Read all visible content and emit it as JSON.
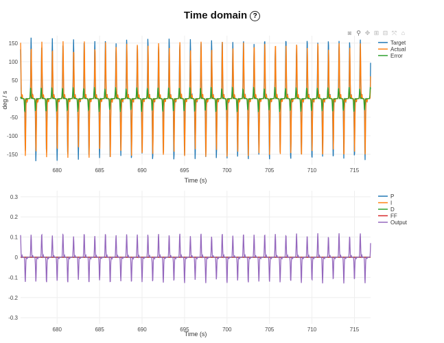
{
  "page": {
    "title": "Time domain",
    "help_icon": "?"
  },
  "modebar": {
    "icons": [
      "camera-icon",
      "zoom-icon",
      "pan-icon",
      "zoom-in-icon",
      "zoom-out-icon",
      "autoscale-icon",
      "home-icon"
    ],
    "glyphs": [
      "◙",
      "⚲",
      "✥",
      "⊞",
      "⊟",
      "⤧",
      "⌂"
    ]
  },
  "chart_data": [
    {
      "type": "line",
      "title": "",
      "xlabel": "Time (s)",
      "ylabel": "deg / s",
      "xlim": [
        675.7,
        716.9
      ],
      "ylim": [
        -178,
        170
      ],
      "xticks": [
        680,
        685,
        690,
        695,
        700,
        705,
        710,
        715
      ],
      "yticks": [
        -150,
        -100,
        -50,
        0,
        50,
        100,
        150
      ],
      "grid": true,
      "legend": "top-right",
      "cycle_period_s": 1.25,
      "series": [
        {
          "name": "Target",
          "color": "#1f77b4",
          "peak": 165,
          "trough": -170
        },
        {
          "name": "Actual",
          "color": "#ff7f0e",
          "peak": 155,
          "trough": -160
        },
        {
          "name": "Error",
          "color": "#2ca02c",
          "peak": 35,
          "trough": -40
        }
      ]
    },
    {
      "type": "line",
      "title": "",
      "xlabel": "Time (s)",
      "ylabel": "",
      "xlim": [
        675.7,
        716.9
      ],
      "ylim": [
        -0.33,
        0.33
      ],
      "xticks": [
        680,
        685,
        690,
        695,
        700,
        705,
        710,
        715
      ],
      "yticks": [
        -0.3,
        -0.2,
        -0.1,
        0,
        0.1,
        0.2,
        0.3
      ],
      "grid": true,
      "legend": "top-right",
      "cycle_period_s": 1.25,
      "series": [
        {
          "name": "P",
          "color": "#1f77b4",
          "peak": 0,
          "trough": 0
        },
        {
          "name": "I",
          "color": "#ff7f0e",
          "peak": 0,
          "trough": 0
        },
        {
          "name": "D",
          "color": "#2ca02c",
          "peak": 0,
          "trough": 0
        },
        {
          "name": "FF",
          "color": "#d62728",
          "peak": 0,
          "trough": 0
        },
        {
          "name": "Output",
          "color": "#9467bd",
          "peak": 0.12,
          "trough": -0.13
        }
      ]
    }
  ]
}
